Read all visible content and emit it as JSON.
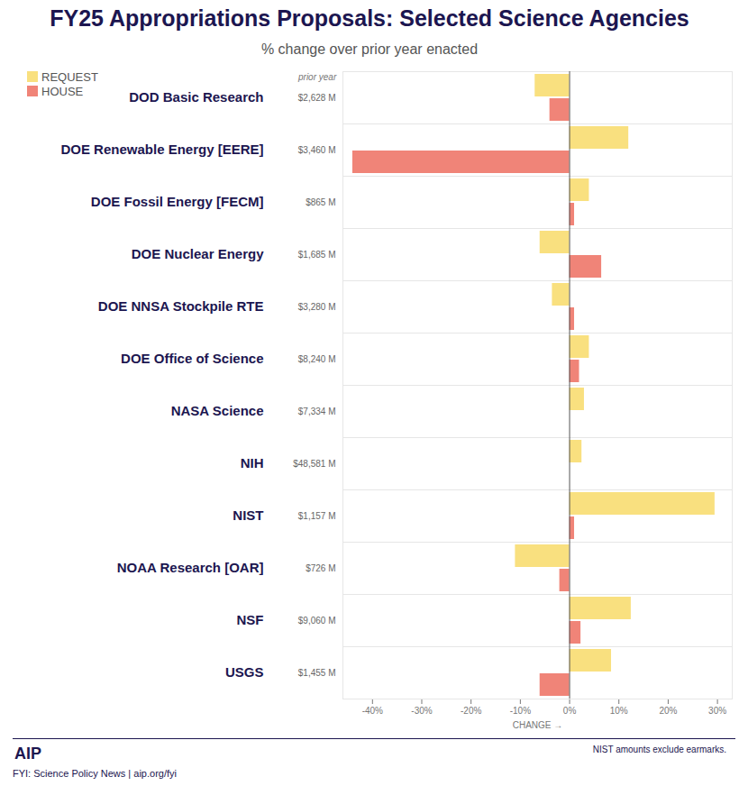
{
  "chart_data": {
    "type": "bar",
    "orientation": "horizontal",
    "title": "FY25 Appropriations Proposals: Selected Science Agencies",
    "subtitle": "% change over prior year enacted",
    "x_label": "CHANGE",
    "categories": [
      "DOD Basic Research",
      "DOE Renewable Energy [EERE]",
      "DOE Fossil Energy [FECM]",
      "DOE Nuclear Energy",
      "DOE NNSA Stockpile RTE",
      "DOE Office of Science",
      "NASA Science",
      "NIH",
      "NIST",
      "NOAA Research [OAR]",
      "NSF",
      "USGS"
    ],
    "prior_year_label": "prior year",
    "prior_year": [
      "$2,628 M",
      "$3,460 M",
      "$865 M",
      "$1,685 M",
      "$3,280 M",
      "$8,240 M",
      "$7,334 M",
      "$48,581 M",
      "$1,157 M",
      "$726 M",
      "$9,060 M",
      "$1,455 M"
    ],
    "series": [
      {
        "name": "REQUEST",
        "color": "#f9e07f",
        "values": [
          -7,
          12,
          4,
          -6,
          -3.5,
          4,
          3,
          2.5,
          29.5,
          -11,
          12.5,
          8.5
        ]
      },
      {
        "name": "HOUSE",
        "color": "#f08478",
        "values": [
          -4,
          -44,
          1,
          6.5,
          1,
          2,
          0,
          0,
          1,
          -2,
          2.3,
          -6
        ]
      }
    ],
    "xlim": [
      -46,
      33
    ],
    "xticks": [
      {
        "value": -40,
        "label": "-40%"
      },
      {
        "value": -30,
        "label": "-30%"
      },
      {
        "value": -20,
        "label": "-20%"
      },
      {
        "value": -10,
        "label": "-10%"
      },
      {
        "value": 0,
        "label": "0%"
      },
      {
        "value": 10,
        "label": "10%"
      },
      {
        "value": 20,
        "label": "20%"
      },
      {
        "value": 30,
        "label": "30%"
      }
    ],
    "legend": "top-left",
    "grid": false,
    "data_labels": false,
    "annotations": [
      "NIST amounts exclude earmarks."
    ],
    "logo": "AIP",
    "source": "FYI: Science Policy News | aip.org/fyi"
  }
}
